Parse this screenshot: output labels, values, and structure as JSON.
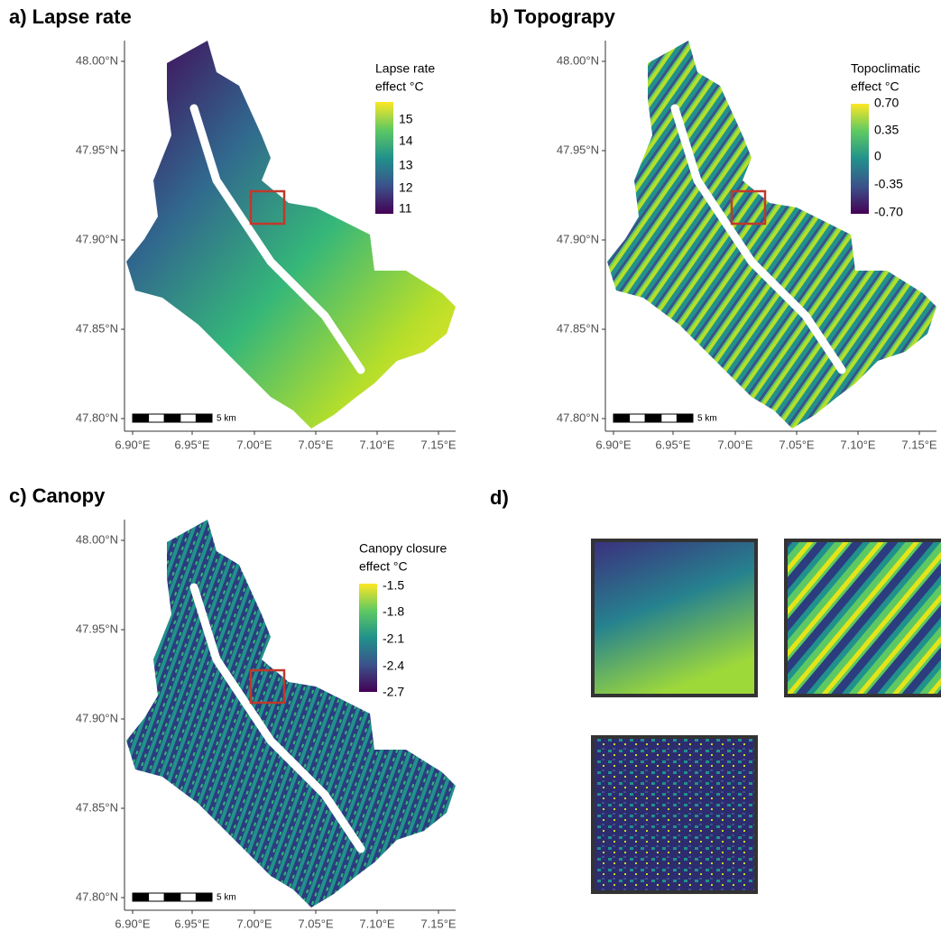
{
  "panels": [
    {
      "title": "a) Lapse rate",
      "legend": {
        "title": [
          "Lapse rate",
          "effect °C"
        ],
        "labels": [
          "15",
          "14",
          "13",
          "12",
          "11"
        ]
      }
    },
    {
      "title": "b) Topograpy",
      "legend": {
        "title": [
          "Topoclimatic",
          "effect °C"
        ],
        "labels": [
          "0.70",
          "0.35",
          "0",
          "-0.35",
          "-0.70"
        ]
      }
    },
    {
      "title": "c) Canopy",
      "legend": {
        "title": [
          "Canopy closure",
          "effect °C"
        ],
        "labels": [
          "-1.5",
          "-1.8",
          "-2.1",
          "-2.4",
          "-2.7"
        ]
      }
    }
  ],
  "y_axis_labels": [
    "48.00°N",
    "47.95°N",
    "47.90°N",
    "47.85°N",
    "47.80°N"
  ],
  "x_axis_labels": [
    "6.90°E",
    "6.95°E",
    "7.00°E",
    "7.05°E",
    "7.10°E",
    "7.15°E"
  ],
  "scale_bar": "5 km",
  "panel_d": {
    "title": "d)"
  }
}
